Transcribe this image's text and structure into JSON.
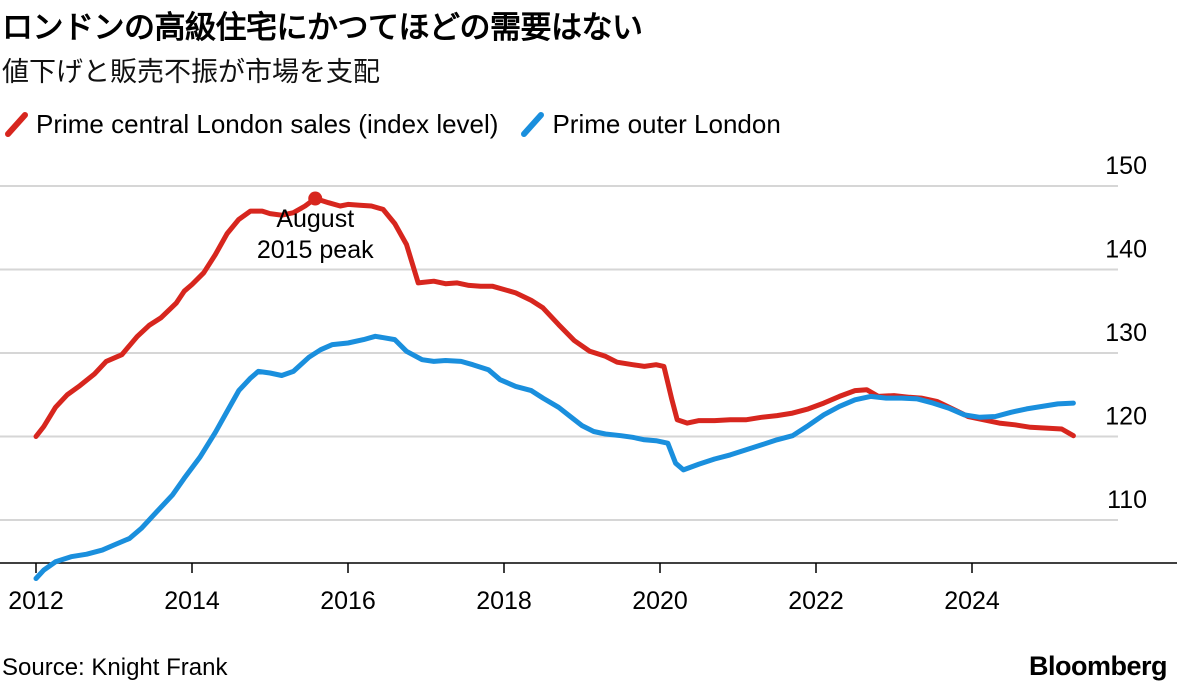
{
  "header": {
    "title": "ロンドンの高級住宅にかつてほどの需要はない",
    "subtitle": "値下げと販売不振が市場を支配"
  },
  "footer": {
    "source": "Source: Knight Frank",
    "brand": "Bloomberg"
  },
  "colors": {
    "central": "#d7261e",
    "outer": "#1a8fdd",
    "grid": "#d6d6d6",
    "axis": "#000000"
  },
  "chart_data": {
    "type": "line",
    "title": "ロンドンの高級住宅にかつてほどの需要はない",
    "subtitle": "値下げと販売不振が市場を支配",
    "xlabel": "",
    "ylabel": "",
    "xlim": [
      2012,
      2026
    ],
    "ylim": [
      105,
      152
    ],
    "x_ticks": [
      2012,
      2014,
      2016,
      2018,
      2020,
      2022,
      2024
    ],
    "y_ticks": [
      110,
      120,
      130,
      140,
      150
    ],
    "grid": true,
    "legend_position": "top-left",
    "series": [
      {
        "name": "Prime central London sales (index level)",
        "color": "#d7261e",
        "points": [
          [
            2012.0,
            120.0
          ],
          [
            2012.1,
            121.2
          ],
          [
            2012.25,
            123.5
          ],
          [
            2012.4,
            125.0
          ],
          [
            2012.55,
            126.0
          ],
          [
            2012.75,
            127.5
          ],
          [
            2012.9,
            129.0
          ],
          [
            2013.1,
            129.8
          ],
          [
            2013.3,
            132.0
          ],
          [
            2013.45,
            133.3
          ],
          [
            2013.6,
            134.2
          ],
          [
            2013.8,
            136.0
          ],
          [
            2013.9,
            137.4
          ],
          [
            2014.0,
            138.2
          ],
          [
            2014.15,
            139.6
          ],
          [
            2014.3,
            141.8
          ],
          [
            2014.45,
            144.3
          ],
          [
            2014.6,
            146.0
          ],
          [
            2014.75,
            147.0
          ],
          [
            2014.9,
            147.0
          ],
          [
            2015.0,
            146.7
          ],
          [
            2015.15,
            146.5
          ],
          [
            2015.3,
            146.8
          ],
          [
            2015.45,
            147.6
          ],
          [
            2015.58,
            148.5
          ],
          [
            2015.75,
            148.0
          ],
          [
            2015.9,
            147.6
          ],
          [
            2016.0,
            147.8
          ],
          [
            2016.15,
            147.7
          ],
          [
            2016.3,
            147.6
          ],
          [
            2016.45,
            147.2
          ],
          [
            2016.6,
            145.5
          ],
          [
            2016.75,
            143.0
          ],
          [
            2016.9,
            138.4
          ],
          [
            2017.1,
            138.6
          ],
          [
            2017.25,
            138.3
          ],
          [
            2017.4,
            138.4
          ],
          [
            2017.55,
            138.1
          ],
          [
            2017.7,
            138.0
          ],
          [
            2017.85,
            138.0
          ],
          [
            2018.0,
            137.6
          ],
          [
            2018.15,
            137.2
          ],
          [
            2018.35,
            136.3
          ],
          [
            2018.5,
            135.4
          ],
          [
            2018.7,
            133.4
          ],
          [
            2018.9,
            131.5
          ],
          [
            2019.1,
            130.2
          ],
          [
            2019.3,
            129.6
          ],
          [
            2019.45,
            128.9
          ],
          [
            2019.65,
            128.6
          ],
          [
            2019.8,
            128.4
          ],
          [
            2019.95,
            128.6
          ],
          [
            2020.05,
            128.4
          ],
          [
            2020.15,
            124.5
          ],
          [
            2020.22,
            122.0
          ],
          [
            2020.35,
            121.6
          ],
          [
            2020.5,
            121.9
          ],
          [
            2020.7,
            121.9
          ],
          [
            2020.9,
            122.0
          ],
          [
            2021.1,
            122.0
          ],
          [
            2021.3,
            122.3
          ],
          [
            2021.5,
            122.5
          ],
          [
            2021.7,
            122.8
          ],
          [
            2021.9,
            123.3
          ],
          [
            2022.1,
            124.0
          ],
          [
            2022.3,
            124.8
          ],
          [
            2022.5,
            125.5
          ],
          [
            2022.65,
            125.6
          ],
          [
            2022.8,
            124.8
          ],
          [
            2023.0,
            124.9
          ],
          [
            2023.2,
            124.7
          ],
          [
            2023.35,
            124.6
          ],
          [
            2023.55,
            124.2
          ],
          [
            2023.75,
            123.3
          ],
          [
            2023.95,
            122.4
          ],
          [
            2024.15,
            122.0
          ],
          [
            2024.35,
            121.6
          ],
          [
            2024.55,
            121.4
          ],
          [
            2024.75,
            121.1
          ],
          [
            2024.95,
            121.0
          ],
          [
            2025.15,
            120.9
          ],
          [
            2025.3,
            120.1
          ]
        ]
      },
      {
        "name": "Prime outer London",
        "color": "#1a8fdd",
        "points": [
          [
            2012.0,
            103.0
          ],
          [
            2012.1,
            104.0
          ],
          [
            2012.25,
            105.0
          ],
          [
            2012.45,
            105.6
          ],
          [
            2012.65,
            105.9
          ],
          [
            2012.85,
            106.4
          ],
          [
            2013.0,
            107.0
          ],
          [
            2013.2,
            107.8
          ],
          [
            2013.35,
            109.0
          ],
          [
            2013.55,
            111.0
          ],
          [
            2013.75,
            113.0
          ],
          [
            2013.9,
            115.0
          ],
          [
            2014.1,
            117.5
          ],
          [
            2014.3,
            120.5
          ],
          [
            2014.45,
            123.0
          ],
          [
            2014.6,
            125.5
          ],
          [
            2014.75,
            127.0
          ],
          [
            2014.85,
            127.8
          ],
          [
            2015.0,
            127.6
          ],
          [
            2015.15,
            127.3
          ],
          [
            2015.3,
            127.8
          ],
          [
            2015.5,
            129.5
          ],
          [
            2015.65,
            130.4
          ],
          [
            2015.8,
            131.0
          ],
          [
            2016.0,
            131.2
          ],
          [
            2016.2,
            131.6
          ],
          [
            2016.35,
            132.0
          ],
          [
            2016.6,
            131.6
          ],
          [
            2016.75,
            130.2
          ],
          [
            2016.95,
            129.2
          ],
          [
            2017.1,
            129.0
          ],
          [
            2017.25,
            129.1
          ],
          [
            2017.45,
            129.0
          ],
          [
            2017.6,
            128.6
          ],
          [
            2017.8,
            128.0
          ],
          [
            2017.95,
            126.8
          ],
          [
            2018.15,
            126.0
          ],
          [
            2018.35,
            125.5
          ],
          [
            2018.5,
            124.6
          ],
          [
            2018.7,
            123.5
          ],
          [
            2018.85,
            122.4
          ],
          [
            2019.0,
            121.3
          ],
          [
            2019.15,
            120.6
          ],
          [
            2019.3,
            120.3
          ],
          [
            2019.5,
            120.1
          ],
          [
            2019.65,
            119.9
          ],
          [
            2019.8,
            119.6
          ],
          [
            2019.95,
            119.5
          ],
          [
            2020.1,
            119.2
          ],
          [
            2020.2,
            116.8
          ],
          [
            2020.3,
            116.0
          ],
          [
            2020.5,
            116.7
          ],
          [
            2020.7,
            117.3
          ],
          [
            2020.9,
            117.8
          ],
          [
            2021.1,
            118.4
          ],
          [
            2021.3,
            119.0
          ],
          [
            2021.5,
            119.6
          ],
          [
            2021.7,
            120.1
          ],
          [
            2021.9,
            121.3
          ],
          [
            2022.1,
            122.6
          ],
          [
            2022.3,
            123.6
          ],
          [
            2022.5,
            124.4
          ],
          [
            2022.7,
            124.8
          ],
          [
            2022.9,
            124.6
          ],
          [
            2023.1,
            124.6
          ],
          [
            2023.3,
            124.5
          ],
          [
            2023.5,
            124.0
          ],
          [
            2023.7,
            123.4
          ],
          [
            2023.9,
            122.6
          ],
          [
            2024.1,
            122.3
          ],
          [
            2024.3,
            122.4
          ],
          [
            2024.5,
            122.9
          ],
          [
            2024.7,
            123.3
          ],
          [
            2024.9,
            123.6
          ],
          [
            2025.1,
            123.9
          ],
          [
            2025.3,
            124.0
          ]
        ]
      }
    ],
    "annotations": [
      {
        "x": 2015.58,
        "y": 148.5,
        "series": "Prime central London sales (index level)",
        "lines": [
          "August",
          "2015 peak"
        ]
      }
    ]
  }
}
